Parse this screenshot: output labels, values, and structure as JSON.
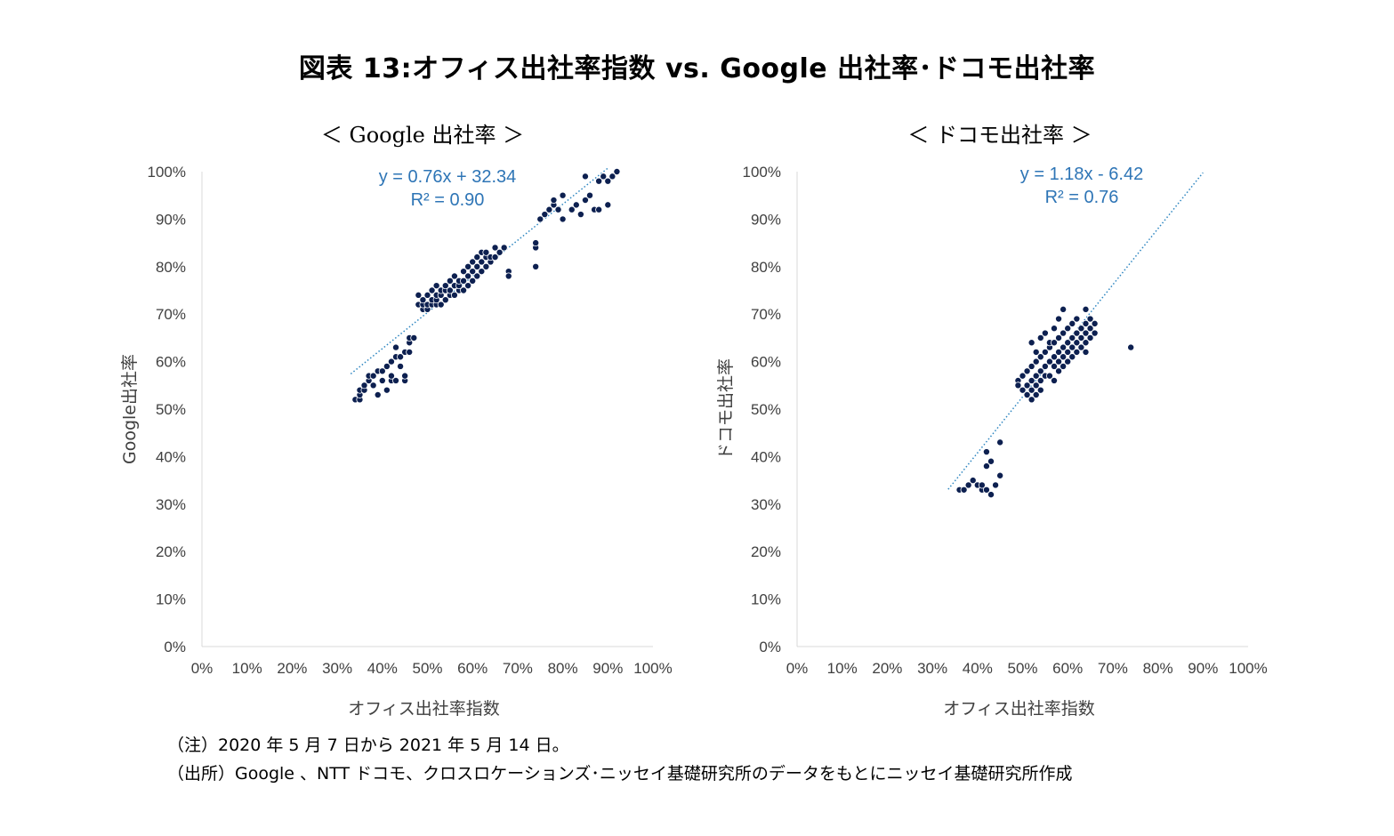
{
  "title": "図表 13:オフィス出社率指数 vs. Google 出社率･ドコモ出社率",
  "notes": [
    "（注）2020 年 5 月 7 日から 2021 年 5 月 14 日。",
    "（出所）Google 、NTT ドコモ、クロスロケーションズ･ニッセイ基礎研究所のデータをもとにニッセイ基礎研究所作成"
  ],
  "colors": {
    "points": "#0d2050",
    "trendline": "#2e86c1",
    "equation": "#2e75b6",
    "axis": "#d9d9d9",
    "text": "#404040"
  },
  "chart_data": [
    {
      "type": "scatter",
      "title": "＜ Google 出社率 ＞",
      "xlabel": "オフィス出社率指数",
      "ylabel": "Google出社率",
      "xlim": [
        0,
        100
      ],
      "ylim": [
        0,
        100
      ],
      "x_ticks": [
        "0%",
        "10%",
        "20%",
        "30%",
        "40%",
        "50%",
        "60%",
        "70%",
        "80%",
        "90%",
        "100%"
      ],
      "y_ticks": [
        "0%",
        "10%",
        "20%",
        "30%",
        "40%",
        "50%",
        "60%",
        "70%",
        "80%",
        "90%",
        "100%"
      ],
      "equation": "y = 0.76x + 32.34",
      "r_squared": "R² = 0.90",
      "trendline": {
        "slope": 0.76,
        "intercept": 32.34,
        "x_range": [
          33,
          90
        ]
      },
      "points": [
        [
          34,
          52
        ],
        [
          35,
          52
        ],
        [
          35,
          53
        ],
        [
          35,
          54
        ],
        [
          36,
          54
        ],
        [
          36,
          55
        ],
        [
          37,
          56
        ],
        [
          37,
          57
        ],
        [
          38,
          55
        ],
        [
          38,
          57
        ],
        [
          39,
          53
        ],
        [
          39,
          58
        ],
        [
          40,
          56
        ],
        [
          40,
          58
        ],
        [
          41,
          54
        ],
        [
          41,
          59
        ],
        [
          42,
          56
        ],
        [
          42,
          57
        ],
        [
          42,
          60
        ],
        [
          43,
          56
        ],
        [
          43,
          61
        ],
        [
          43,
          63
        ],
        [
          44,
          59
        ],
        [
          44,
          61
        ],
        [
          45,
          56
        ],
        [
          45,
          57
        ],
        [
          45,
          62
        ],
        [
          46,
          62
        ],
        [
          46,
          64
        ],
        [
          46,
          65
        ],
        [
          47,
          65
        ],
        [
          48,
          72
        ],
        [
          48,
          74
        ],
        [
          49,
          71
        ],
        [
          49,
          72
        ],
        [
          49,
          73
        ],
        [
          50,
          71
        ],
        [
          50,
          72
        ],
        [
          50,
          74
        ],
        [
          51,
          72
        ],
        [
          51,
          73
        ],
        [
          51,
          75
        ],
        [
          52,
          72
        ],
        [
          52,
          73
        ],
        [
          52,
          74
        ],
        [
          52,
          76
        ],
        [
          53,
          72
        ],
        [
          53,
          74
        ],
        [
          53,
          75
        ],
        [
          54,
          73
        ],
        [
          54,
          75
        ],
        [
          54,
          76
        ],
        [
          55,
          74
        ],
        [
          55,
          75
        ],
        [
          55,
          77
        ],
        [
          56,
          74
        ],
        [
          56,
          76
        ],
        [
          56,
          78
        ],
        [
          57,
          75
        ],
        [
          57,
          76
        ],
        [
          57,
          77
        ],
        [
          58,
          75
        ],
        [
          58,
          77
        ],
        [
          58,
          79
        ],
        [
          59,
          76
        ],
        [
          59,
          78
        ],
        [
          59,
          80
        ],
        [
          60,
          77
        ],
        [
          60,
          79
        ],
        [
          60,
          81
        ],
        [
          61,
          78
        ],
        [
          61,
          80
        ],
        [
          61,
          82
        ],
        [
          62,
          79
        ],
        [
          62,
          81
        ],
        [
          62,
          83
        ],
        [
          63,
          80
        ],
        [
          63,
          82
        ],
        [
          63,
          83
        ],
        [
          64,
          81
        ],
        [
          64,
          82
        ],
        [
          65,
          82
        ],
        [
          65,
          84
        ],
        [
          66,
          83
        ],
        [
          67,
          84
        ],
        [
          68,
          79
        ],
        [
          68,
          78
        ],
        [
          74,
          80
        ],
        [
          74,
          84
        ],
        [
          74,
          85
        ],
        [
          75,
          90
        ],
        [
          76,
          91
        ],
        [
          77,
          92
        ],
        [
          78,
          93
        ],
        [
          78,
          94
        ],
        [
          79,
          92
        ],
        [
          80,
          90
        ],
        [
          80,
          95
        ],
        [
          82,
          92
        ],
        [
          83,
          93
        ],
        [
          84,
          91
        ],
        [
          85,
          94
        ],
        [
          85,
          99
        ],
        [
          86,
          95
        ],
        [
          87,
          92
        ],
        [
          88,
          92
        ],
        [
          88,
          98
        ],
        [
          89,
          99
        ],
        [
          90,
          98
        ],
        [
          90,
          93
        ],
        [
          91,
          99
        ],
        [
          92,
          100
        ]
      ]
    },
    {
      "type": "scatter",
      "title": "＜ ドコモ出社率 ＞",
      "xlabel": "オフィス出社率指数",
      "ylabel": "ドコモ出社率",
      "xlim": [
        0,
        100
      ],
      "ylim": [
        0,
        100
      ],
      "x_ticks": [
        "0%",
        "10%",
        "20%",
        "30%",
        "40%",
        "50%",
        "60%",
        "70%",
        "80%",
        "90%",
        "100%"
      ],
      "y_ticks": [
        "0%",
        "10%",
        "20%",
        "30%",
        "40%",
        "50%",
        "60%",
        "70%",
        "80%",
        "90%",
        "100%"
      ],
      "equation": "y = 1.18x - 6.42",
      "r_squared": "R² = 0.76",
      "trendline": {
        "slope": 1.18,
        "intercept": -6.42,
        "x_range": [
          33.5,
          90
        ]
      },
      "points": [
        [
          36,
          33
        ],
        [
          37,
          33
        ],
        [
          38,
          34
        ],
        [
          39,
          35
        ],
        [
          40,
          34
        ],
        [
          41,
          33
        ],
        [
          41,
          34
        ],
        [
          42,
          33
        ],
        [
          42,
          38
        ],
        [
          42,
          41
        ],
        [
          43,
          32
        ],
        [
          43,
          39
        ],
        [
          44,
          34
        ],
        [
          45,
          43
        ],
        [
          45,
          36
        ],
        [
          49,
          56
        ],
        [
          49,
          55
        ],
        [
          50,
          54
        ],
        [
          50,
          57
        ],
        [
          51,
          53
        ],
        [
          51,
          58
        ],
        [
          51,
          55
        ],
        [
          52,
          52
        ],
        [
          52,
          54
        ],
        [
          52,
          56
        ],
        [
          52,
          59
        ],
        [
          52,
          64
        ],
        [
          53,
          53
        ],
        [
          53,
          55
        ],
        [
          53,
          57
        ],
        [
          53,
          60
        ],
        [
          53,
          62
        ],
        [
          54,
          54
        ],
        [
          54,
          56
        ],
        [
          54,
          58
        ],
        [
          54,
          61
        ],
        [
          54,
          65
        ],
        [
          55,
          57
        ],
        [
          55,
          59
        ],
        [
          55,
          62
        ],
        [
          55,
          66
        ],
        [
          56,
          57
        ],
        [
          56,
          60
        ],
        [
          56,
          63
        ],
        [
          56,
          64
        ],
        [
          57,
          56
        ],
        [
          57,
          59
        ],
        [
          57,
          61
        ],
        [
          57,
          64
        ],
        [
          57,
          67
        ],
        [
          58,
          58
        ],
        [
          58,
          60
        ],
        [
          58,
          62
        ],
        [
          58,
          65
        ],
        [
          58,
          69
        ],
        [
          59,
          59
        ],
        [
          59,
          61
        ],
        [
          59,
          63
        ],
        [
          59,
          66
        ],
        [
          59,
          71
        ],
        [
          60,
          60
        ],
        [
          60,
          62
        ],
        [
          60,
          64
        ],
        [
          60,
          67
        ],
        [
          61,
          61
        ],
        [
          61,
          63
        ],
        [
          61,
          65
        ],
        [
          61,
          68
        ],
        [
          62,
          62
        ],
        [
          62,
          64
        ],
        [
          62,
          66
        ],
        [
          62,
          69
        ],
        [
          63,
          63
        ],
        [
          63,
          65
        ],
        [
          63,
          67
        ],
        [
          64,
          62
        ],
        [
          64,
          64
        ],
        [
          64,
          66
        ],
        [
          64,
          68
        ],
        [
          64,
          71
        ],
        [
          65,
          65
        ],
        [
          65,
          67
        ],
        [
          65,
          69
        ],
        [
          66,
          66
        ],
        [
          66,
          68
        ],
        [
          74,
          63
        ]
      ]
    }
  ]
}
